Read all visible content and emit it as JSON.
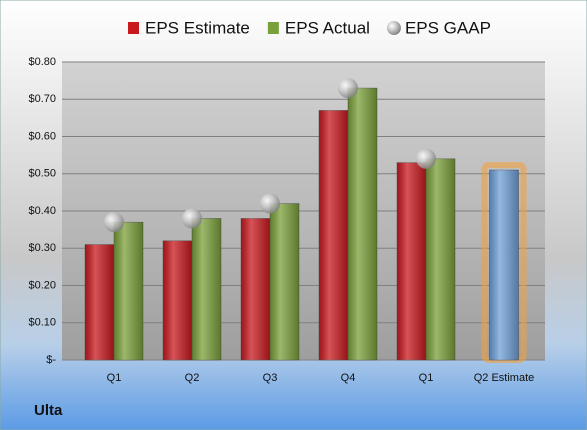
{
  "chart_data": {
    "type": "bar",
    "footer": "Ulta",
    "categories": [
      "Q1",
      "Q2",
      "Q3",
      "Q4",
      "Q1",
      "Q2 Estimate"
    ],
    "series": [
      {
        "name": "EPS Estimate",
        "color": "#c8191e",
        "colors": [
          "#c8191e",
          "#c8191e",
          "#c8191e",
          "#c8191e",
          "#c8191e",
          "#6fa0d8"
        ],
        "values": [
          0.31,
          0.32,
          0.38,
          0.67,
          0.53,
          0.51
        ]
      },
      {
        "name": "EPS Actual",
        "color": "#7aa03a",
        "values": [
          0.37,
          0.38,
          0.42,
          0.73,
          0.54,
          null
        ]
      },
      {
        "name": "EPS GAAP",
        "type": "scatter",
        "color": "#b8b8b8",
        "values": [
          0.37,
          0.38,
          0.42,
          0.73,
          0.54,
          null
        ]
      }
    ],
    "ylim": [
      0,
      0.8
    ],
    "yticks": [
      {
        "value": 0,
        "label": "$-"
      },
      {
        "value": 0.1,
        "label": "$0.10"
      },
      {
        "value": 0.2,
        "label": "$0.20"
      },
      {
        "value": 0.3,
        "label": "$0.30"
      },
      {
        "value": 0.4,
        "label": "$0.40"
      },
      {
        "value": 0.5,
        "label": "$0.50"
      },
      {
        "value": 0.6,
        "label": "$0.60"
      },
      {
        "value": 0.7,
        "label": "$0.70"
      },
      {
        "value": 0.8,
        "label": "$0.80"
      }
    ],
    "grid": true
  }
}
